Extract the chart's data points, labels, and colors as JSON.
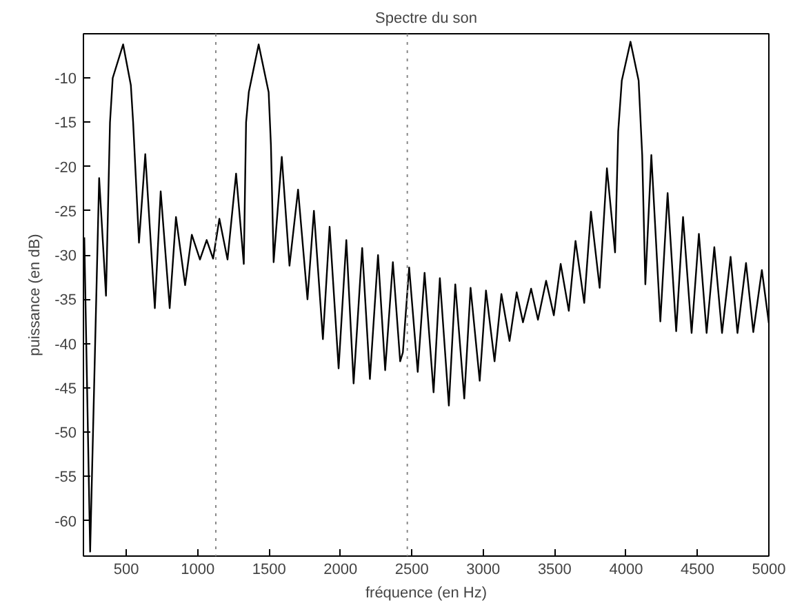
{
  "chart_data": {
    "type": "line",
    "title": "Spectre du son",
    "xlabel": "fréquence (en Hz)",
    "ylabel": "puissance (en dB)",
    "xlim": [
      200,
      5000
    ],
    "ylim": [
      -64,
      -5
    ],
    "xticks": [
      500,
      1000,
      1500,
      2000,
      2500,
      3000,
      3500,
      4000,
      4500,
      5000
    ],
    "yticks": [
      -60,
      -55,
      -50,
      -45,
      -40,
      -35,
      -30,
      -25,
      -20,
      -15,
      -10
    ],
    "grid": false,
    "marker": "none",
    "line_style": "solid",
    "ref_lines": [
      {
        "axis": "x",
        "value": 1127,
        "color": "#888888",
        "line_style": "dotted"
      },
      {
        "axis": "x",
        "value": 2468,
        "color": "#888888",
        "line_style": "dotted"
      }
    ],
    "series": [
      {
        "color": "#000000",
        "x": [
          206,
          247,
          310,
          358,
          386,
          405,
          478,
          532,
          548,
          589,
          633,
          700,
          741,
          804,
          848,
          912,
          959,
          1016,
          1063,
          1108,
          1152,
          1209,
          1269,
          1323,
          1339,
          1358,
          1427,
          1497,
          1513,
          1532,
          1589,
          1643,
          1703,
          1769,
          1814,
          1877,
          1924,
          1987,
          2041,
          2092,
          2152,
          2206,
          2263,
          2313,
          2367,
          2418,
          2437,
          2481,
          2541,
          2589,
          2652,
          2696,
          2759,
          2804,
          2867,
          2911,
          2975,
          3019,
          3079,
          3127,
          3184,
          3234,
          3278,
          3335,
          3383,
          3440,
          3494,
          3542,
          3599,
          3646,
          3707,
          3754,
          3815,
          3866,
          3923,
          3945,
          3970,
          4031,
          4088,
          4113,
          4135,
          4177,
          4240,
          4291,
          4351,
          4399,
          4459,
          4510,
          4564,
          4618,
          4672,
          4732,
          4780,
          4840,
          4891,
          4951,
          5000
        ],
        "values": [
          -28,
          -63.5,
          -21.3,
          -34.6,
          -15,
          -10,
          -6.2,
          -10.8,
          -15,
          -28.6,
          -18.6,
          -36,
          -22.8,
          -36,
          -25.7,
          -33.4,
          -27.7,
          -30.5,
          -28.3,
          -30.4,
          -25.9,
          -30.5,
          -20.8,
          -31,
          -15,
          -11.6,
          -6.2,
          -11.6,
          -17.6,
          -30.8,
          -18.9,
          -31.2,
          -22.6,
          -35,
          -25,
          -39.5,
          -26.8,
          -42.8,
          -28.3,
          -44.5,
          -29.2,
          -44,
          -30,
          -43,
          -30.8,
          -42,
          -41,
          -31.4,
          -43.2,
          -32,
          -45.5,
          -32.6,
          -47,
          -33.3,
          -46.2,
          -33.7,
          -44.2,
          -34,
          -42,
          -34.4,
          -39.7,
          -34.2,
          -37.6,
          -33.8,
          -37.3,
          -32.9,
          -36.8,
          -31,
          -36.3,
          -28.4,
          -35.4,
          -25.1,
          -33.7,
          -20.2,
          -29.7,
          -16,
          -10.3,
          -5.9,
          -10.3,
          -18.7,
          -33.3,
          -18.7,
          -37.5,
          -23,
          -38.6,
          -25.7,
          -38.8,
          -27.6,
          -38.8,
          -29.1,
          -38.8,
          -30.2,
          -38.8,
          -30.9,
          -38.7,
          -31.7,
          -37.7
        ]
      }
    ]
  }
}
